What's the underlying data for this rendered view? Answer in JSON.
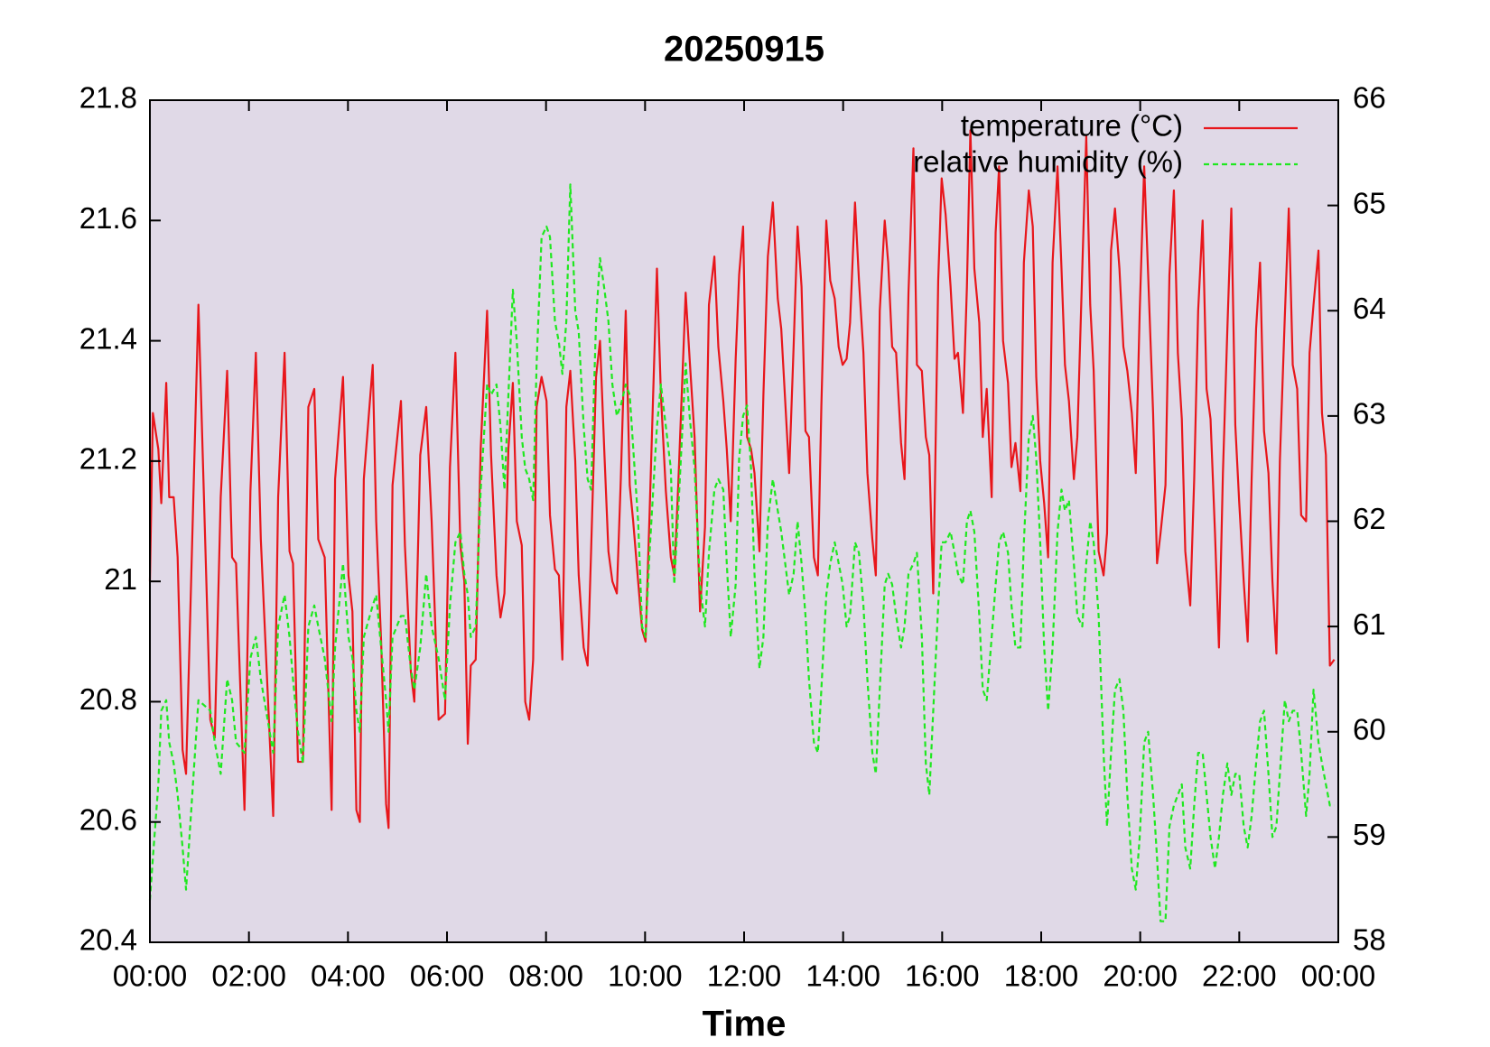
{
  "chart_data": {
    "type": "line",
    "title": "20250915",
    "xlabel": "Time",
    "xlim": [
      0,
      24
    ],
    "xticks": [
      {
        "value": 0,
        "label": "00:00"
      },
      {
        "value": 2,
        "label": "02:00"
      },
      {
        "value": 4,
        "label": "04:00"
      },
      {
        "value": 6,
        "label": "06:00"
      },
      {
        "value": 8,
        "label": "08:00"
      },
      {
        "value": 10,
        "label": "10:00"
      },
      {
        "value": 12,
        "label": "12:00"
      },
      {
        "value": 14,
        "label": "14:00"
      },
      {
        "value": 16,
        "label": "16:00"
      },
      {
        "value": 18,
        "label": "18:00"
      },
      {
        "value": 20,
        "label": "20:00"
      },
      {
        "value": 22,
        "label": "22:00"
      },
      {
        "value": 24,
        "label": "00:00"
      }
    ],
    "ylim": [
      20.4,
      21.8
    ],
    "yticks": [
      20.4,
      20.6,
      20.8,
      21,
      21.2,
      21.4,
      21.6,
      21.8
    ],
    "y2lim": [
      58,
      66
    ],
    "y2ticks": [
      58,
      59,
      60,
      61,
      62,
      63,
      64,
      65,
      66
    ],
    "legend": "top-right",
    "background": "#e0d9e7",
    "x": [
      0,
      0.06,
      0.17,
      0.23,
      0.33,
      0.39,
      0.48,
      0.56,
      0.66,
      0.73,
      0.98,
      1.22,
      1.31,
      1.43,
      1.56,
      1.66,
      1.74,
      1.91,
      2.03,
      2.14,
      2.24,
      2.49,
      2.59,
      2.72,
      2.82,
      2.89,
      2.99,
      3.09,
      3.2,
      3.32,
      3.4,
      3.53,
      3.67,
      3.74,
      3.9,
      4.01,
      4.09,
      4.17,
      4.24,
      4.32,
      4.5,
      4.57,
      4.67,
      4.77,
      4.82,
      4.9,
      5.07,
      5.15,
      5.27,
      5.34,
      5.46,
      5.58,
      5.69,
      5.83,
      5.96,
      6.06,
      6.17,
      6.27,
      6.35,
      6.42,
      6.48,
      6.58,
      6.68,
      6.81,
      6.89,
      7.0,
      7.08,
      7.16,
      7.24,
      7.33,
      7.41,
      7.51,
      7.58,
      7.66,
      7.74,
      7.81,
      7.91,
      8.01,
      8.08,
      8.18,
      8.26,
      8.33,
      8.41,
      8.49,
      8.59,
      8.66,
      8.76,
      8.84,
      8.91,
      9.01,
      9.09,
      9.18,
      9.26,
      9.34,
      9.43,
      9.51,
      9.61,
      9.69,
      9.76,
      9.86,
      9.94,
      10.01,
      10.09,
      10.24,
      10.32,
      10.42,
      10.52,
      10.59,
      10.67,
      10.82,
      10.9,
      11.0,
      11.11,
      11.21,
      11.29,
      11.4,
      11.48,
      11.58,
      11.65,
      11.73,
      11.83,
      11.9,
      11.98,
      12.06,
      12.14,
      12.21,
      12.31,
      12.39,
      12.48,
      12.58,
      12.68,
      12.75,
      12.83,
      12.91,
      13.0,
      13.08,
      13.16,
      13.24,
      13.31,
      13.41,
      13.49,
      13.56,
      13.66,
      13.74,
      13.83,
      13.91,
      13.99,
      14.07,
      14.14,
      14.24,
      14.32,
      14.41,
      14.49,
      14.59,
      14.66,
      14.74,
      14.84,
      14.91,
      14.99,
      15.07,
      15.17,
      15.24,
      15.32,
      15.42,
      15.49,
      15.59,
      15.67,
      15.74,
      15.82,
      15.92,
      15.99,
      16.07,
      16.17,
      16.25,
      16.32,
      16.42,
      16.5,
      16.57,
      16.65,
      16.75,
      16.82,
      16.9,
      17.0,
      17.08,
      17.15,
      17.23,
      17.33,
      17.4,
      17.48,
      17.58,
      17.65,
      17.75,
      17.83,
      17.9,
      17.98,
      18.06,
      18.14,
      18.23,
      18.33,
      18.41,
      18.48,
      18.56,
      18.66,
      18.73,
      18.83,
      18.91,
      18.99,
      19.06,
      19.16,
      19.26,
      19.33,
      19.41,
      19.49,
      19.58,
      19.66,
      19.74,
      19.83,
      19.91,
      19.99,
      20.08,
      20.16,
      20.26,
      20.34,
      20.41,
      20.51,
      20.59,
      20.68,
      20.76,
      20.84,
      20.91,
      21.01,
      21.09,
      21.17,
      21.26,
      21.34,
      21.42,
      21.51,
      21.59,
      21.67,
      21.76,
      21.84,
      21.92,
      22.0,
      22.09,
      22.17,
      22.25,
      22.34,
      22.42,
      22.5,
      22.59,
      22.67,
      22.75,
      22.82,
      22.92,
      23.0,
      23.08,
      23.17,
      23.25,
      23.35,
      23.42,
      23.5,
      23.6,
      23.67,
      23.75,
      23.83,
      23.92
    ],
    "series": [
      {
        "name": "temperature (°C)",
        "color": "#e8161b",
        "dash": false,
        "values": [
          21.0,
          21.28,
          21.22,
          21.13,
          21.33,
          21.14,
          21.14,
          21.04,
          20.72,
          20.68,
          21.46,
          20.77,
          20.74,
          21.14,
          21.35,
          21.04,
          21.03,
          20.62,
          21.15,
          21.38,
          21.07,
          20.61,
          21.14,
          21.38,
          21.05,
          21.03,
          20.7,
          20.7,
          21.29,
          21.32,
          21.07,
          21.04,
          20.62,
          21.17,
          21.34,
          21.01,
          20.95,
          20.62,
          20.6,
          21.17,
          21.36,
          21.1,
          20.9,
          20.63,
          20.59,
          21.16,
          21.3,
          21.06,
          20.85,
          20.8,
          21.21,
          21.29,
          21.1,
          20.77,
          20.78,
          21.19,
          21.38,
          21.06,
          21.0,
          20.73,
          20.86,
          20.87,
          21.22,
          21.45,
          21.21,
          21.01,
          20.94,
          20.98,
          21.22,
          21.33,
          21.1,
          21.06,
          20.8,
          20.77,
          20.87,
          21.29,
          21.34,
          21.3,
          21.11,
          21.02,
          21.01,
          20.87,
          21.29,
          21.35,
          21.2,
          21.01,
          20.89,
          20.86,
          21.05,
          21.34,
          21.4,
          21.21,
          21.05,
          21.0,
          20.98,
          21.17,
          21.45,
          21.16,
          21.1,
          21.0,
          20.92,
          20.9,
          21.11,
          21.52,
          21.31,
          21.15,
          21.04,
          21.01,
          21.16,
          21.48,
          21.37,
          21.24,
          20.95,
          21.09,
          21.46,
          21.54,
          21.39,
          21.3,
          21.22,
          21.1,
          21.37,
          21.51,
          21.59,
          21.24,
          21.22,
          21.18,
          21.05,
          21.31,
          21.54,
          21.63,
          21.47,
          21.42,
          21.3,
          21.18,
          21.39,
          21.59,
          21.49,
          21.25,
          21.24,
          21.04,
          21.01,
          21.29,
          21.6,
          21.5,
          21.47,
          21.39,
          21.36,
          21.37,
          21.43,
          21.63,
          21.5,
          21.38,
          21.18,
          21.07,
          21.01,
          21.45,
          21.6,
          21.53,
          21.39,
          21.38,
          21.23,
          21.17,
          21.48,
          21.72,
          21.36,
          21.35,
          21.24,
          21.21,
          20.98,
          21.5,
          21.67,
          21.61,
          21.49,
          21.37,
          21.38,
          21.28,
          21.49,
          21.75,
          21.52,
          21.43,
          21.24,
          21.32,
          21.14,
          21.58,
          21.69,
          21.4,
          21.33,
          21.19,
          21.23,
          21.15,
          21.53,
          21.65,
          21.59,
          21.34,
          21.2,
          21.13,
          21.04,
          21.53,
          21.69,
          21.52,
          21.36,
          21.3,
          21.17,
          21.24,
          21.52,
          21.74,
          21.46,
          21.35,
          21.05,
          21.01,
          21.08,
          21.55,
          21.62,
          21.52,
          21.39,
          21.35,
          21.28,
          21.18,
          21.45,
          21.69,
          21.51,
          21.28,
          21.03,
          21.08,
          21.16,
          21.51,
          21.65,
          21.38,
          21.27,
          21.05,
          20.96,
          21.17,
          21.45,
          21.6,
          21.32,
          21.27,
          21.08,
          20.89,
          21.18,
          21.42,
          21.62,
          21.26,
          21.13,
          21.0,
          20.9,
          21.17,
          21.42,
          21.53,
          21.25,
          21.18,
          21.0,
          20.88,
          21.2,
          21.44,
          21.62,
          21.36,
          21.32,
          21.11,
          21.1,
          21.38,
          21.46,
          21.55,
          21.28,
          21.21,
          20.86,
          20.87
        ]
      },
      {
        "name": "relative humidity (%)",
        "color": "#1fe81f",
        "dash": true,
        "axis": "y2",
        "values": [
          58.4,
          58.8,
          59.5,
          60.2,
          60.3,
          59.9,
          59.7,
          59.4,
          58.9,
          58.5,
          60.3,
          60.2,
          59.9,
          59.6,
          60.5,
          60.3,
          59.9,
          59.8,
          60.7,
          60.9,
          60.5,
          59.8,
          61.0,
          61.3,
          60.9,
          60.5,
          60.0,
          59.7,
          61.0,
          61.2,
          61.0,
          60.7,
          60.1,
          60.8,
          61.6,
          60.9,
          60.7,
          60.2,
          60.0,
          60.9,
          61.2,
          61.3,
          60.8,
          60.3,
          60.0,
          60.9,
          61.1,
          61.1,
          60.6,
          60.4,
          60.8,
          61.5,
          61.0,
          60.7,
          60.3,
          61.2,
          61.8,
          61.9,
          61.5,
          61.3,
          60.9,
          61.0,
          62.3,
          63.3,
          63.2,
          63.3,
          62.9,
          62.3,
          63.2,
          64.2,
          63.7,
          62.8,
          62.5,
          62.4,
          62.2,
          63.5,
          64.7,
          64.8,
          64.7,
          63.9,
          63.7,
          63.4,
          63.9,
          65.2,
          64.0,
          63.8,
          62.9,
          62.4,
          62.3,
          63.9,
          64.5,
          64.2,
          63.9,
          63.3,
          63.0,
          63.1,
          63.3,
          63.2,
          62.7,
          62.0,
          61.0,
          60.9,
          61.7,
          62.9,
          63.3,
          62.9,
          62.5,
          61.4,
          62.1,
          63.5,
          63.0,
          62.5,
          61.4,
          61.0,
          61.7,
          62.3,
          62.4,
          62.3,
          61.6,
          60.9,
          61.4,
          62.6,
          63.0,
          63.1,
          62.5,
          61.5,
          60.6,
          60.9,
          62.0,
          62.4,
          62.1,
          61.9,
          61.6,
          61.3,
          61.5,
          62.0,
          61.6,
          61.1,
          60.5,
          59.9,
          59.8,
          60.4,
          61.3,
          61.6,
          61.8,
          61.6,
          61.4,
          61.0,
          61.1,
          61.8,
          61.7,
          61.2,
          60.5,
          59.8,
          59.6,
          60.4,
          61.4,
          61.5,
          61.4,
          61.1,
          60.8,
          61.0,
          61.5,
          61.6,
          61.7,
          60.9,
          59.7,
          59.4,
          60.2,
          61.2,
          61.8,
          61.8,
          61.9,
          61.7,
          61.5,
          61.4,
          62.0,
          62.1,
          61.9,
          61.1,
          60.4,
          60.3,
          60.9,
          61.4,
          61.8,
          61.9,
          61.7,
          61.2,
          60.8,
          60.8,
          61.8,
          62.8,
          63.0,
          62.6,
          61.8,
          60.8,
          60.2,
          60.8,
          61.9,
          62.3,
          62.1,
          62.2,
          61.6,
          61.1,
          61.0,
          61.6,
          62.0,
          61.8,
          61.1,
          59.8,
          59.1,
          59.8,
          60.4,
          60.5,
          60.2,
          59.4,
          58.7,
          58.5,
          59.0,
          59.9,
          60.0,
          59.4,
          58.8,
          58.2,
          58.2,
          59.1,
          59.3,
          59.4,
          59.5,
          58.9,
          58.7,
          59.3,
          59.8,
          59.8,
          59.4,
          59.0,
          58.7,
          59.0,
          59.4,
          59.7,
          59.4,
          59.6,
          59.6,
          59.1,
          58.9,
          59.2,
          59.7,
          60.1,
          60.2,
          59.6,
          59.0,
          59.1,
          59.6,
          60.3,
          60.1,
          60.2,
          60.2,
          59.8,
          59.2,
          59.6,
          60.4,
          59.9,
          59.7,
          59.5,
          59.3,
          59.3
        ]
      }
    ]
  }
}
